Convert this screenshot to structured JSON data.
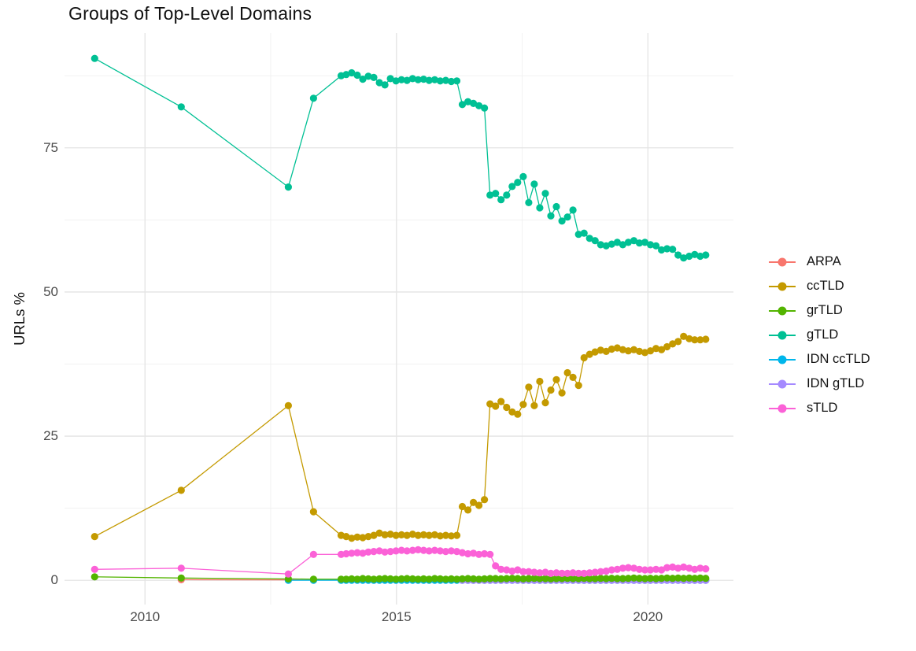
{
  "chart_data": {
    "type": "line",
    "title": "Groups of Top-Level Domains",
    "xlabel": "",
    "ylabel": "URLs %",
    "grid": true,
    "legend_position": "right",
    "xlim": [
      2008.4,
      2021.7
    ],
    "ylim": [
      -4.2,
      94.9
    ],
    "x_ticks": [
      {
        "v": 2010,
        "label": "2010"
      },
      {
        "v": 2015,
        "label": "2015"
      },
      {
        "v": 2020,
        "label": "2020"
      }
    ],
    "x_ticks_minor": [
      2012.5,
      2017.5
    ],
    "y_ticks": [
      {
        "v": 0,
        "label": "0"
      },
      {
        "v": 25,
        "label": "25"
      },
      {
        "v": 50,
        "label": "50"
      },
      {
        "v": 75,
        "label": "75"
      }
    ],
    "y_ticks_minor": [
      12.5,
      37.5,
      62.5,
      87.5
    ],
    "grid_major_color": "#e4e4e4",
    "grid_minor_color": "#f1f1f1",
    "dense_x": [
      2014.0,
      2014.11,
      2014.22,
      2014.33,
      2014.44,
      2014.55,
      2014.66,
      2014.77,
      2014.88,
      2014.99,
      2015.1,
      2015.21,
      2015.32,
      2015.43,
      2015.54,
      2015.65,
      2015.76,
      2015.87,
      2015.98,
      2016.09,
      2016.2,
      2016.31,
      2016.42,
      2016.53,
      2016.64,
      2016.75,
      2016.86,
      2016.97,
      2017.08,
      2017.19,
      2017.3,
      2017.41,
      2017.52,
      2017.63,
      2017.74,
      2017.85,
      2017.96,
      2018.07,
      2018.18,
      2018.29,
      2018.4,
      2018.51,
      2018.62,
      2018.73,
      2018.84,
      2018.95,
      2019.06,
      2019.17,
      2019.28,
      2019.39,
      2019.5,
      2019.61,
      2019.72,
      2019.83,
      2019.94,
      2020.05,
      2020.16,
      2020.27,
      2020.38,
      2020.49,
      2020.6,
      2020.71,
      2020.82,
      2020.93,
      2021.04,
      2021.15
    ],
    "draw_order": [
      "ARPA",
      "IDN ccTLD",
      "IDN gTLD",
      "grTLD",
      "ccTLD",
      "gTLD",
      "sTLD"
    ],
    "series": [
      {
        "name": "ARPA",
        "color": "#F8766D",
        "dense_from": 0,
        "early": [
          [
            2010.72,
            0.12
          ],
          [
            2012.85,
            0.08
          ],
          [
            2013.35,
            0.05
          ],
          [
            2013.9,
            0.05
          ]
        ],
        "dense_y_const": 0.05
      },
      {
        "name": "ccTLD",
        "color": "#C49A00",
        "dense_from": 0,
        "early": [
          [
            2009.0,
            7.6
          ],
          [
            2010.72,
            15.6
          ],
          [
            2012.85,
            30.3
          ],
          [
            2013.35,
            11.9
          ],
          [
            2013.9,
            7.8
          ]
        ],
        "dense_y": [
          7.6,
          7.3,
          7.5,
          7.4,
          7.6,
          7.8,
          8.2,
          7.9,
          8.0,
          7.8,
          7.9,
          7.8,
          8.0,
          7.8,
          7.9,
          7.8,
          7.9,
          7.7,
          7.8,
          7.7,
          7.8,
          12.8,
          12.2,
          13.5,
          13.0,
          14.0,
          30.6,
          30.2,
          31.0,
          30.0,
          29.2,
          28.8,
          30.5,
          33.5,
          30.3,
          34.5,
          30.8,
          33.0,
          34.8,
          32.5,
          36.0,
          35.2,
          33.8,
          38.6,
          39.2,
          39.6,
          39.9,
          39.7,
          40.1,
          40.3,
          40.0,
          39.8,
          40.0,
          39.7,
          39.5,
          39.8,
          40.2,
          40.0,
          40.5,
          41.0,
          41.4,
          42.3,
          41.9,
          41.7,
          41.7,
          41.8
        ]
      },
      {
        "name": "grTLD",
        "color": "#53B400",
        "dense_from": 0,
        "early": [
          [
            2009.0,
            0.6
          ],
          [
            2010.72,
            0.4
          ],
          [
            2012.85,
            0.25
          ],
          [
            2013.35,
            0.2
          ],
          [
            2013.9,
            0.2
          ]
        ],
        "dense_y": [
          0.2,
          0.25,
          0.2,
          0.3,
          0.25,
          0.2,
          0.25,
          0.3,
          0.25,
          0.2,
          0.25,
          0.3,
          0.25,
          0.2,
          0.25,
          0.2,
          0.3,
          0.25,
          0.2,
          0.25,
          0.2,
          0.25,
          0.3,
          0.25,
          0.2,
          0.25,
          0.3,
          0.3,
          0.25,
          0.3,
          0.35,
          0.3,
          0.25,
          0.3,
          0.35,
          0.3,
          0.3,
          0.25,
          0.3,
          0.3,
          0.35,
          0.3,
          0.3,
          0.35,
          0.3,
          0.3,
          0.35,
          0.3,
          0.35,
          0.3,
          0.3,
          0.35,
          0.4,
          0.35,
          0.3,
          0.35,
          0.3,
          0.35,
          0.4,
          0.35,
          0.4,
          0.35,
          0.4,
          0.35,
          0.4,
          0.35
        ]
      },
      {
        "name": "gTLD",
        "color": "#00C094",
        "dense_from": 0,
        "early": [
          [
            2009.0,
            90.5
          ],
          [
            2010.72,
            82.1
          ],
          [
            2012.85,
            68.2
          ],
          [
            2013.35,
            83.6
          ],
          [
            2013.9,
            87.5
          ]
        ],
        "dense_y": [
          87.7,
          88.0,
          87.6,
          86.9,
          87.4,
          87.2,
          86.3,
          85.9,
          87.0,
          86.6,
          86.8,
          86.7,
          87.0,
          86.8,
          86.9,
          86.7,
          86.8,
          86.6,
          86.7,
          86.5,
          86.6,
          82.5,
          83.0,
          82.7,
          82.3,
          81.9,
          66.8,
          67.1,
          66.0,
          66.8,
          68.3,
          69.0,
          70.0,
          65.5,
          68.7,
          64.6,
          67.1,
          63.2,
          64.8,
          62.3,
          63.0,
          64.2,
          60.0,
          60.2,
          59.3,
          58.9,
          58.2,
          58.0,
          58.3,
          58.6,
          58.2,
          58.6,
          58.9,
          58.5,
          58.6,
          58.2,
          58.0,
          57.3,
          57.5,
          57.4,
          56.4,
          55.9,
          56.2,
          56.5,
          56.2,
          56.4
        ]
      },
      {
        "name": "IDN ccTLD",
        "color": "#00B6EB",
        "dense_from": 0,
        "early": [
          [
            2012.85,
            0.02
          ],
          [
            2013.35,
            0.02
          ],
          [
            2013.9,
            0.02
          ]
        ],
        "dense_y_const": 0.02
      },
      {
        "name": "IDN gTLD",
        "color": "#A58AFF",
        "dense_from": 21,
        "early": [],
        "dense_y_const": 0.0
      },
      {
        "name": "sTLD",
        "color": "#FB61D7",
        "dense_from": 0,
        "early": [
          [
            2009.0,
            1.9
          ],
          [
            2010.72,
            2.1
          ],
          [
            2012.85,
            1.1
          ],
          [
            2013.35,
            4.5
          ],
          [
            2013.9,
            4.5
          ]
        ],
        "dense_y": [
          4.6,
          4.7,
          4.8,
          4.7,
          4.9,
          5.0,
          5.1,
          4.9,
          5.0,
          5.1,
          5.2,
          5.1,
          5.2,
          5.3,
          5.2,
          5.1,
          5.2,
          5.1,
          5.0,
          5.1,
          5.0,
          4.8,
          4.6,
          4.7,
          4.5,
          4.6,
          4.5,
          2.5,
          1.9,
          1.8,
          1.6,
          1.8,
          1.5,
          1.5,
          1.4,
          1.3,
          1.4,
          1.2,
          1.3,
          1.2,
          1.2,
          1.3,
          1.2,
          1.2,
          1.3,
          1.4,
          1.5,
          1.6,
          1.8,
          1.9,
          2.1,
          2.2,
          2.1,
          1.9,
          1.8,
          1.8,
          1.9,
          1.8,
          2.2,
          2.3,
          2.1,
          2.3,
          2.1,
          1.9,
          2.1,
          2.0
        ]
      }
    ]
  }
}
